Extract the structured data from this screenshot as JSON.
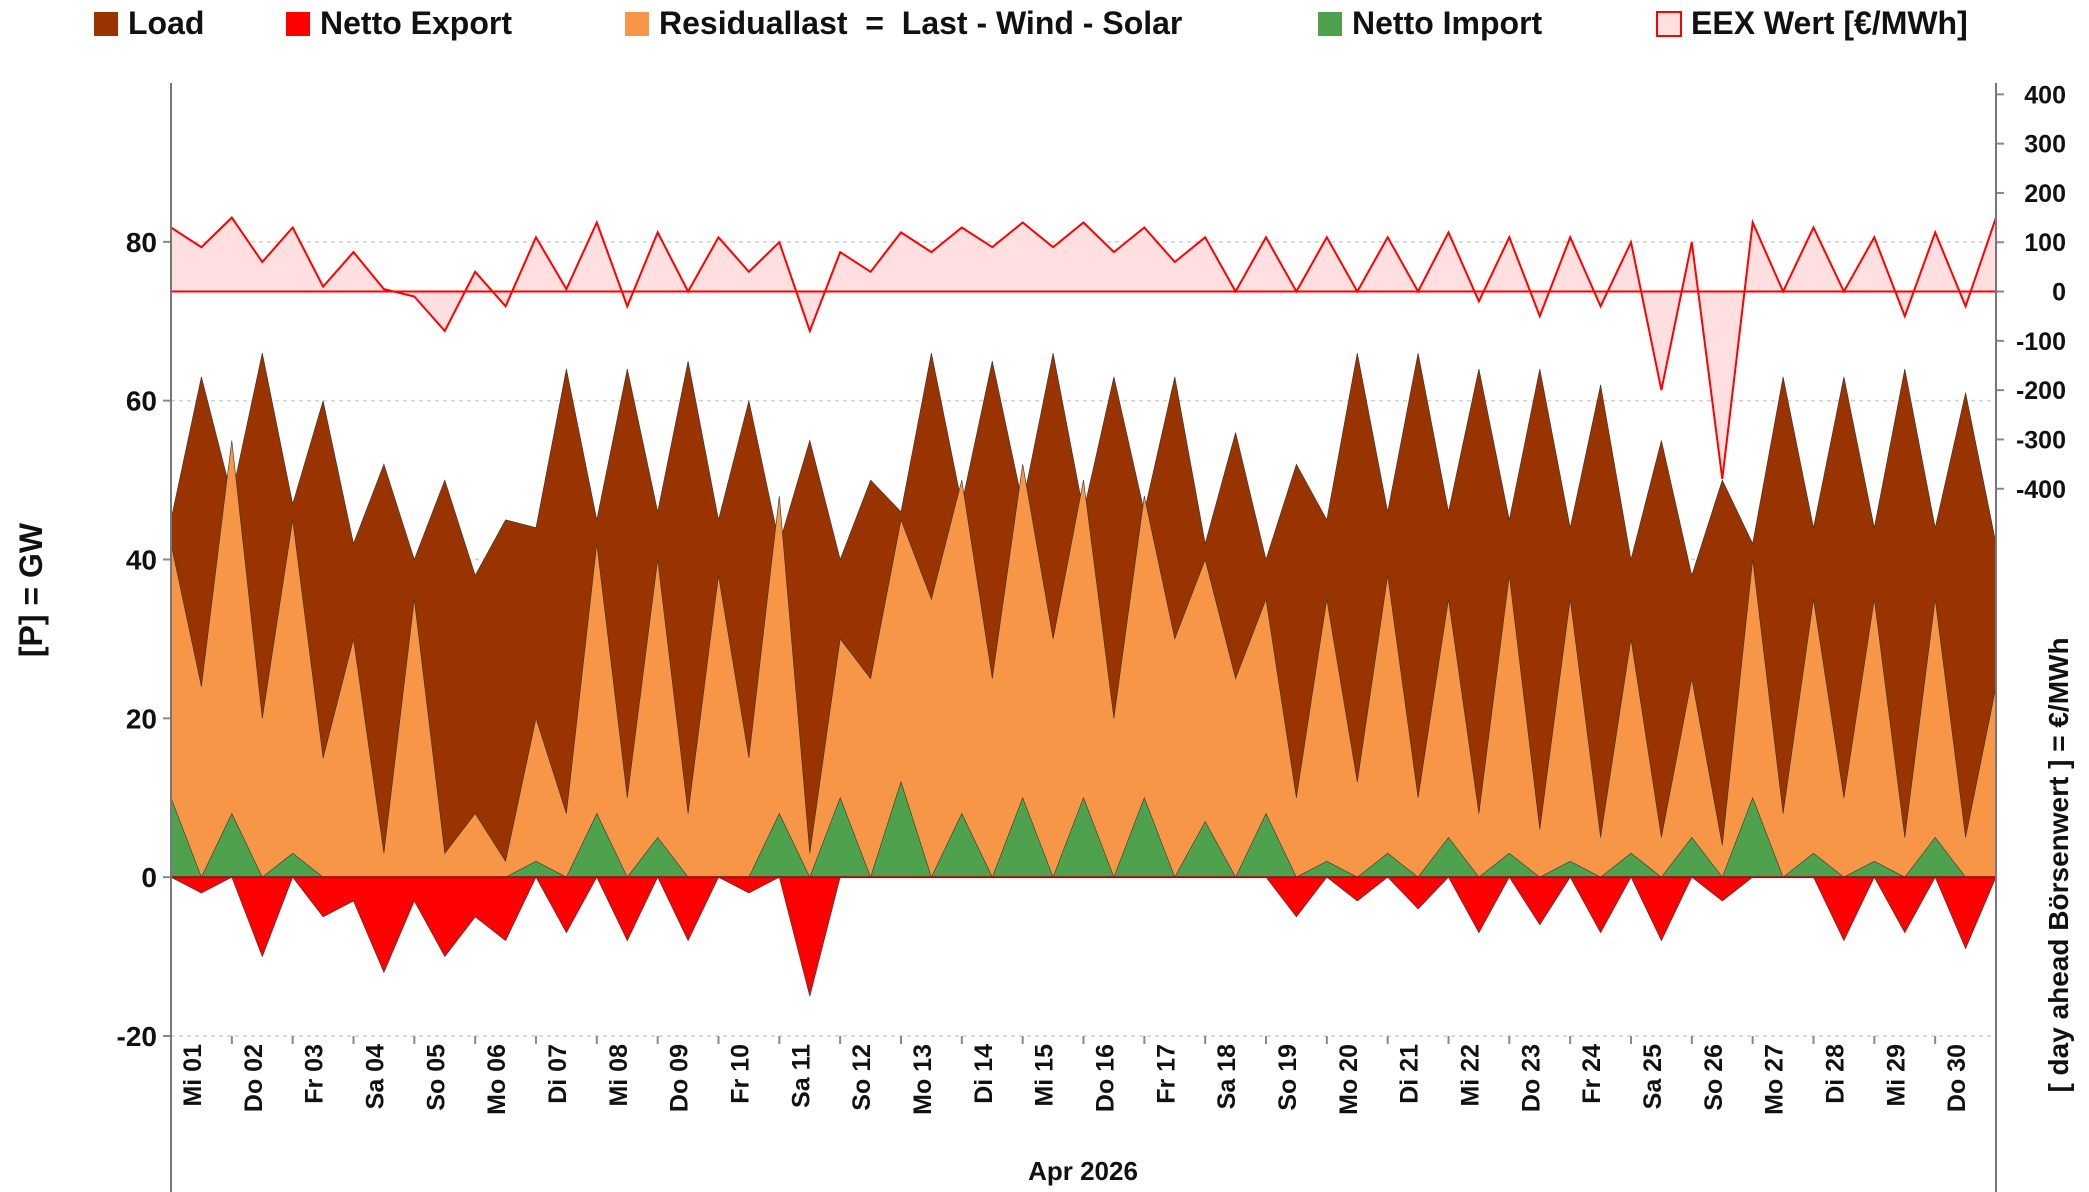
{
  "chart_data": {
    "type": "area",
    "x_label": "Apr 2026",
    "y_label": "[P]  =  GW",
    "y2_label": "[ day ahead Börsenwert ]  =  €/MWh",
    "x": [
      0,
      0.5,
      1,
      1.5,
      2,
      2.5,
      3,
      3.5,
      4,
      4.5,
      5,
      5.5,
      6,
      6.5,
      7,
      7.5,
      8,
      8.5,
      9,
      9.5,
      10,
      10.5,
      11,
      11.5,
      12,
      12.5,
      13,
      13.5,
      14,
      14.5,
      15,
      15.5,
      16,
      16.5,
      17,
      17.5,
      18,
      18.5,
      19,
      19.5,
      20,
      20.5,
      21,
      21.5,
      22,
      22.5,
      23,
      23.5,
      24,
      24.5,
      25,
      25.5,
      26,
      26.5,
      27,
      27.5,
      28,
      28.5,
      29,
      29.5,
      30
    ],
    "xlim": [
      0,
      30
    ],
    "xticks": [
      {
        "value": 0,
        "label": "Mi 01"
      },
      {
        "value": 1,
        "label": "Do 02"
      },
      {
        "value": 2,
        "label": "Fr 03"
      },
      {
        "value": 3,
        "label": "Sa 04"
      },
      {
        "value": 4,
        "label": "So 05"
      },
      {
        "value": 5,
        "label": "Mo 06"
      },
      {
        "value": 6,
        "label": "Di 07"
      },
      {
        "value": 7,
        "label": "Mi 08"
      },
      {
        "value": 8,
        "label": "Do 09"
      },
      {
        "value": 9,
        "label": "Fr 10"
      },
      {
        "value": 10,
        "label": "Sa 11"
      },
      {
        "value": 11,
        "label": "So 12"
      },
      {
        "value": 12,
        "label": "Mo 13"
      },
      {
        "value": 13,
        "label": "Di 14"
      },
      {
        "value": 14,
        "label": "Mi 15"
      },
      {
        "value": 15,
        "label": "Do 16"
      },
      {
        "value": 16,
        "label": "Fr 17"
      },
      {
        "value": 17,
        "label": "Sa 18"
      },
      {
        "value": 18,
        "label": "So 19"
      },
      {
        "value": 19,
        "label": "Mo 20"
      },
      {
        "value": 20,
        "label": "Di 21"
      },
      {
        "value": 21,
        "label": "Mi 22"
      },
      {
        "value": 22,
        "label": "Do 23"
      },
      {
        "value": 23,
        "label": "Fr 24"
      },
      {
        "value": 24,
        "label": "Sa 25"
      },
      {
        "value": 25,
        "label": "So 26"
      },
      {
        "value": 26,
        "label": "Mo 27"
      },
      {
        "value": 27,
        "label": "Di 28"
      },
      {
        "value": 28,
        "label": "Mi 29"
      },
      {
        "value": 29,
        "label": "Do 30"
      }
    ],
    "ylim": [
      -20,
      100
    ],
    "yticks": [
      -20,
      0,
      20,
      40,
      60,
      80
    ],
    "y2lim": [
      -1510,
      423
    ],
    "y2ticks": [
      -400,
      -300,
      -200,
      -100,
      0,
      100,
      200,
      300,
      400
    ],
    "grid": true,
    "series": [
      {
        "name": "EEX Wert [€/MWh]",
        "color": "#ff0000",
        "fill": "#ffdfe0",
        "axis": "y2",
        "values": [
          130,
          90,
          150,
          60,
          130,
          10,
          80,
          5,
          -10,
          -80,
          40,
          -30,
          110,
          5,
          140,
          -30,
          120,
          0,
          110,
          40,
          100,
          -80,
          80,
          40,
          120,
          80,
          130,
          90,
          140,
          90,
          140,
          80,
          130,
          60,
          110,
          0,
          110,
          0,
          110,
          0,
          110,
          0,
          120,
          -20,
          110,
          -50,
          110,
          -30,
          100,
          -200,
          100,
          -380,
          140,
          0,
          130,
          0,
          110,
          -50,
          120,
          -30,
          150
        ]
      },
      {
        "name": "Load",
        "color": "#993300",
        "values": [
          45,
          63,
          48,
          66,
          47,
          60,
          42,
          52,
          40,
          50,
          38,
          45,
          44,
          64,
          45,
          64,
          46,
          65,
          45,
          60,
          42,
          55,
          40,
          50,
          46,
          66,
          47,
          65,
          47,
          66,
          46,
          63,
          46,
          63,
          42,
          56,
          40,
          52,
          45,
          66,
          46,
          66,
          46,
          64,
          45,
          64,
          44,
          62,
          40,
          55,
          38,
          50,
          42,
          63,
          44,
          63,
          44,
          64,
          44,
          61,
          42
        ]
      },
      {
        "name": "Residuallast  =  Last - Wind - Solar",
        "color": "#f79646",
        "values": [
          42,
          24,
          55,
          20,
          45,
          15,
          30,
          3,
          35,
          3,
          8,
          2,
          20,
          8,
          42,
          10,
          40,
          8,
          38,
          15,
          48,
          3,
          30,
          25,
          45,
          35,
          50,
          25,
          52,
          30,
          50,
          20,
          48,
          30,
          40,
          25,
          35,
          10,
          35,
          12,
          38,
          10,
          35,
          8,
          38,
          6,
          35,
          5,
          30,
          5,
          25,
          4,
          40,
          8,
          35,
          10,
          35,
          5,
          35,
          5,
          24
        ]
      },
      {
        "name": "Netto Import",
        "color": "#4ea24e",
        "values": [
          10,
          0,
          8,
          0,
          3,
          0,
          0,
          0,
          0,
          0,
          0,
          0,
          2,
          0,
          8,
          0,
          5,
          0,
          0,
          0,
          8,
          0,
          10,
          0,
          12,
          0,
          8,
          0,
          10,
          0,
          10,
          0,
          10,
          0,
          7,
          0,
          8,
          0,
          2,
          0,
          3,
          0,
          5,
          0,
          3,
          0,
          2,
          0,
          3,
          0,
          5,
          0,
          10,
          0,
          3,
          0,
          2,
          0,
          5,
          0,
          0
        ]
      },
      {
        "name": "Netto Export",
        "color": "#ff0000",
        "values": [
          0,
          -2,
          0,
          -10,
          0,
          -5,
          -3,
          -12,
          -3,
          -10,
          -5,
          -8,
          0,
          -7,
          0,
          -8,
          0,
          -8,
          0,
          -2,
          0,
          -15,
          0,
          0,
          0,
          0,
          0,
          0,
          0,
          0,
          0,
          0,
          0,
          0,
          0,
          0,
          0,
          -5,
          0,
          -3,
          0,
          -4,
          0,
          -7,
          0,
          -6,
          0,
          -7,
          0,
          -8,
          0,
          -3,
          0,
          0,
          0,
          -8,
          0,
          -7,
          0,
          -9,
          0
        ]
      }
    ]
  }
}
